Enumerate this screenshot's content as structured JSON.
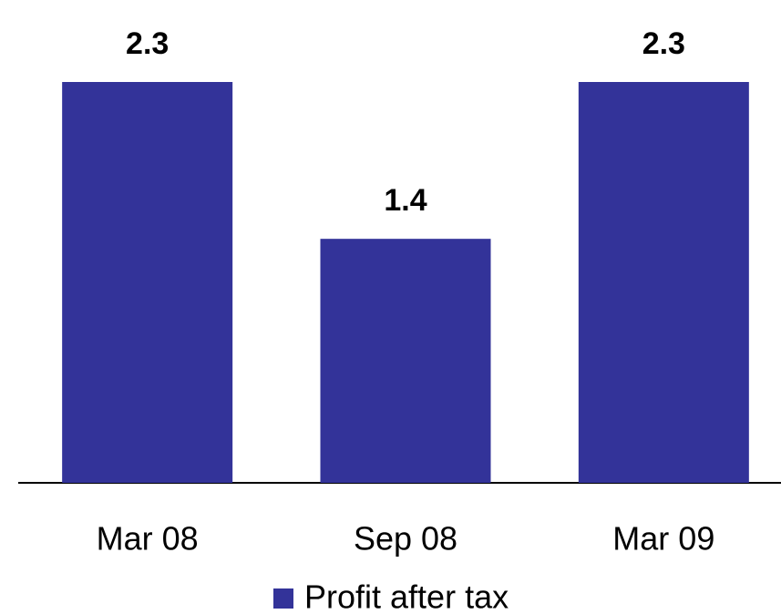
{
  "chart_data": {
    "type": "bar",
    "categories": [
      "Mar 08",
      "Sep 08",
      "Mar 09"
    ],
    "series": [
      {
        "name": "Profit after tax",
        "color": "#333399",
        "values": [
          2.3,
          1.4,
          2.3
        ]
      }
    ]
  }
}
